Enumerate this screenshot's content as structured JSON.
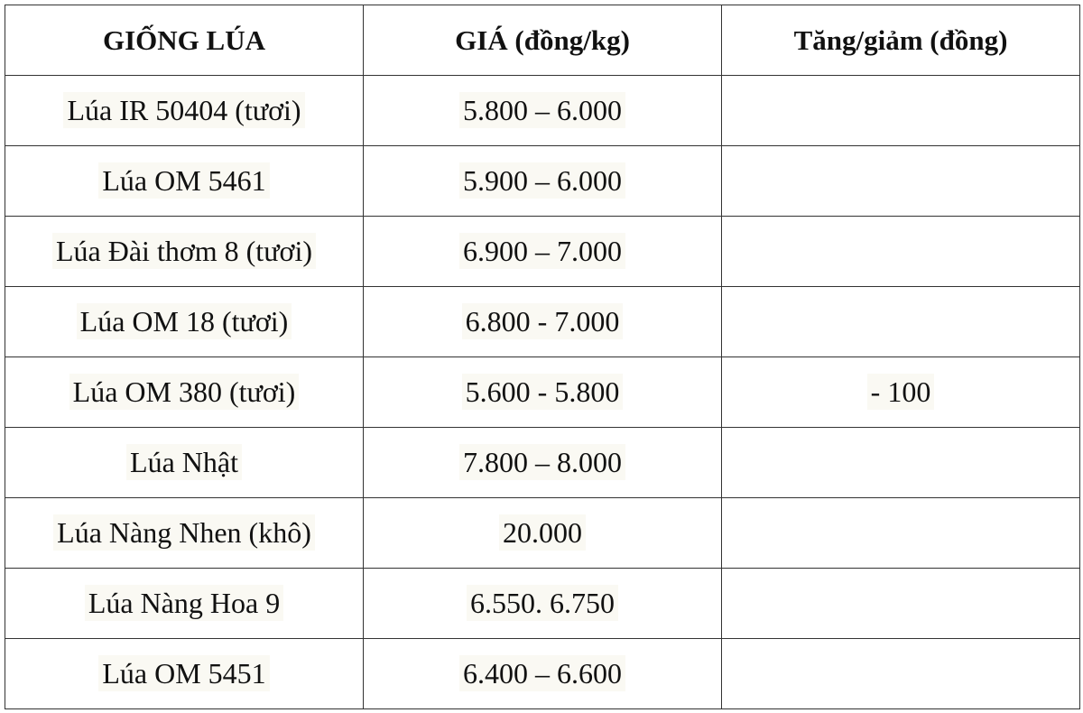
{
  "table": {
    "header": [
      "GIỐNG LÚA",
      "GIÁ (đồng/kg)",
      "Tăng/giảm (đồng)"
    ],
    "rows": [
      {
        "variety": "Lúa IR 50404 (tươi)",
        "price": "5.800 – 6.000"
      },
      {
        "variety": "Lúa OM 5461",
        "price": "5.900 – 6.000"
      },
      {
        "variety": "Lúa Đài thơm 8 (tươi)",
        "price": "6.900 – 7.000"
      },
      {
        "variety": "Lúa OM 18 (tươi)",
        "price": "6.800 - 7.000"
      },
      {
        "variety": "Lúa OM 380 (tươi)",
        "price": "5.600 - 5.800",
        "change": "- 100"
      },
      {
        "variety": "Lúa Nhật",
        "price": "7.800 – 8.000"
      },
      {
        "variety": "Lúa Nàng Nhen (khô)",
        "price": "20.000"
      },
      {
        "variety": "Lúa Nàng Hoa 9",
        "price": "6.550. 6.750"
      },
      {
        "variety": "Lúa OM 5451",
        "price": "6.400 – 6.600"
      }
    ]
  }
}
